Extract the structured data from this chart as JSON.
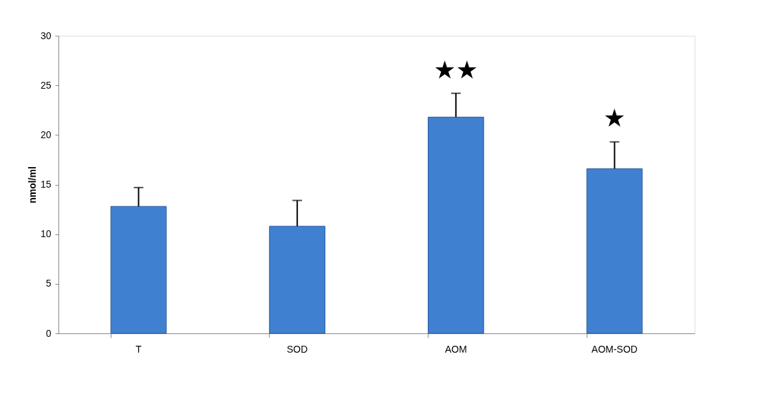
{
  "chart_data": {
    "type": "bar",
    "ylabel": "nmol/ml",
    "categories": [
      "T",
      "SOD",
      "AOM",
      "AOM-SOD"
    ],
    "values": [
      12.8,
      10.8,
      21.8,
      16.6
    ],
    "errors": [
      [
        12.8,
        14.7
      ],
      [
        10.8,
        13.4
      ],
      [
        21.8,
        24.2
      ],
      [
        16.6,
        19.3
      ]
    ],
    "color": "#4080d0",
    "ylim": [
      0,
      30
    ],
    "yticks": [
      0,
      5,
      10,
      15,
      20,
      25,
      30
    ],
    "grid": false,
    "value_labels": [
      null,
      null,
      "★★",
      "★"
    ]
  }
}
